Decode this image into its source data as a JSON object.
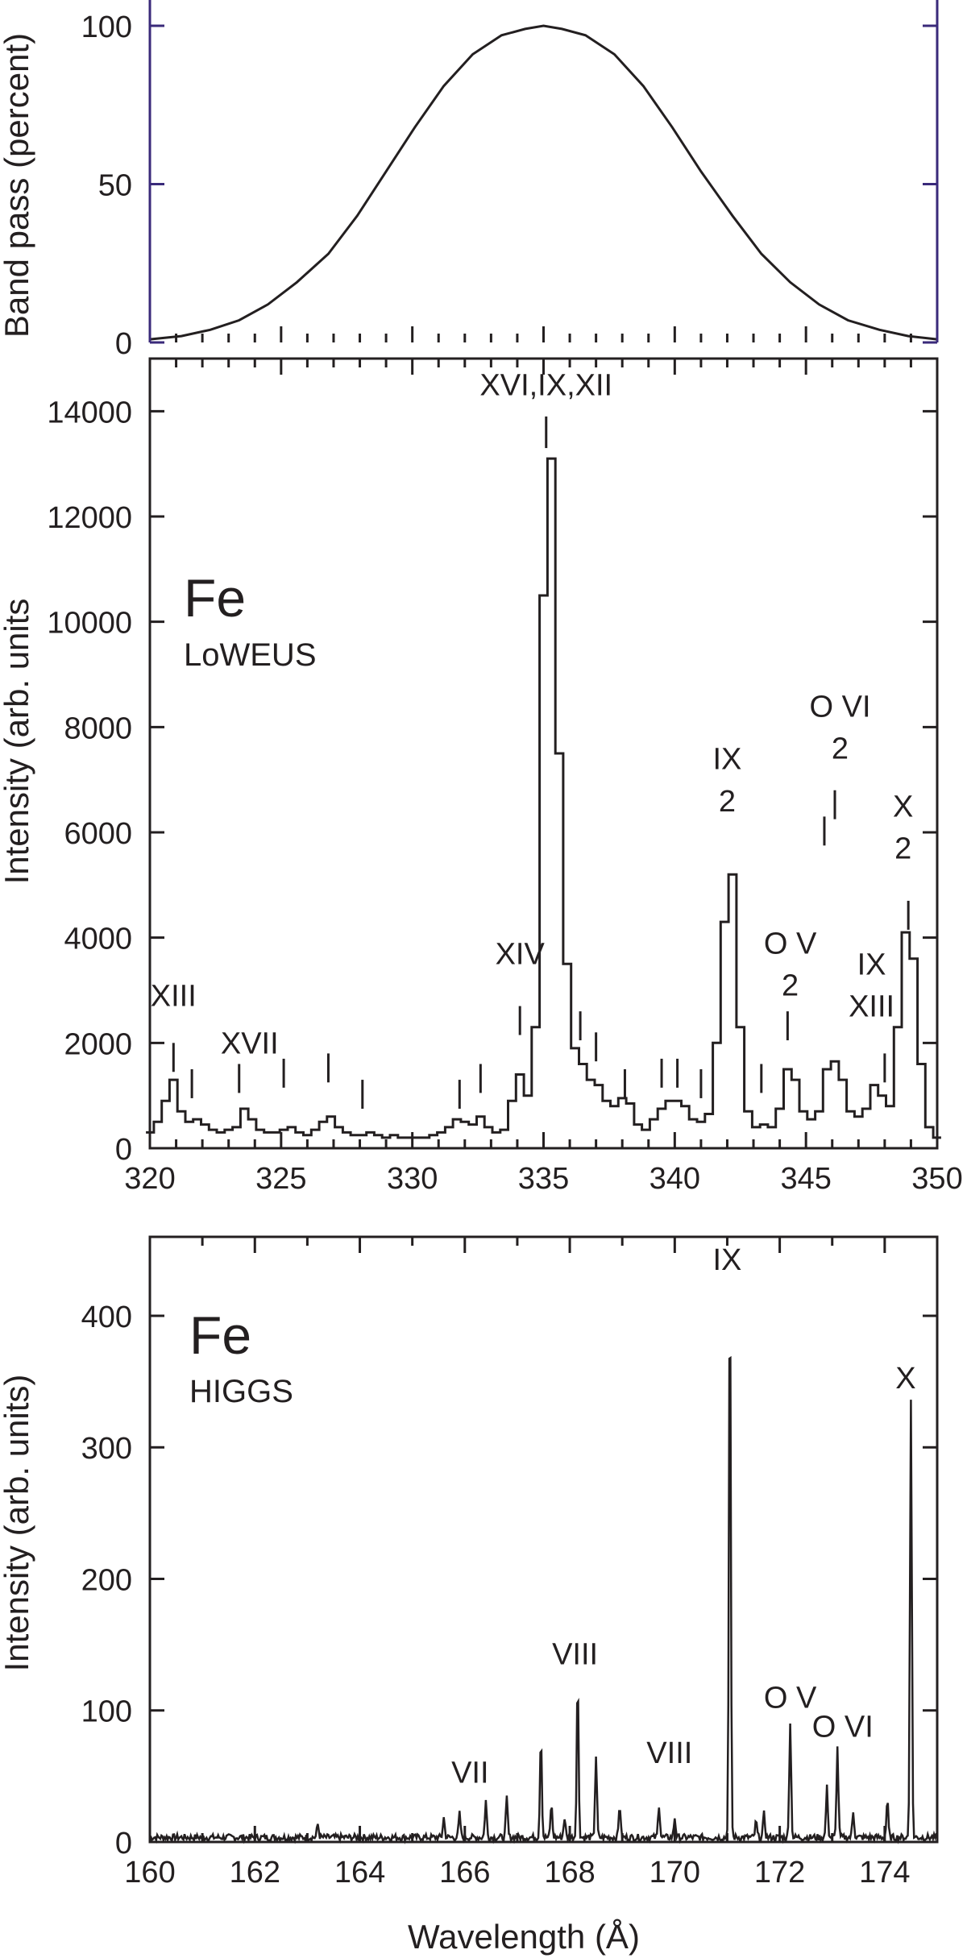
{
  "chart_data": [
    {
      "type": "line",
      "panel": "top",
      "ylabel": "Band pass (percent)",
      "xlabel": "",
      "ylim": [
        0,
        100
      ],
      "yticks": [
        0,
        50,
        100
      ],
      "frame_color": "#3a2a7a",
      "series": [
        {
          "x": [
            320,
            321.2,
            322.3,
            323.4,
            324.5,
            325.6,
            326.8,
            327.9,
            329.0,
            330.1,
            331.2,
            332.3,
            333.4,
            334.3,
            335.0,
            335.7,
            336.6,
            337.7,
            338.8,
            339.9,
            341.0,
            342.2,
            343.3,
            344.4,
            345.5,
            346.6,
            347.8,
            348.9,
            350
          ],
          "y": [
            1,
            2,
            4,
            7,
            12,
            19,
            28,
            40,
            54,
            68,
            81,
            91,
            97,
            99,
            100,
            99,
            97,
            91,
            81,
            68,
            54,
            40,
            28,
            19,
            12,
            7,
            4,
            2,
            1
          ]
        }
      ]
    },
    {
      "type": "line",
      "panel": "middle",
      "instrument_title": "Fe",
      "instrument_subtitle": "LoWEUS",
      "ylabel": "Intensity (arb. units",
      "xlabel": "",
      "xlim": [
        320,
        350
      ],
      "ylim": [
        0,
        15000
      ],
      "xticks": [
        320,
        325,
        330,
        335,
        340,
        345,
        350
      ],
      "yticks": [
        0,
        2000,
        4000,
        6000,
        8000,
        10000,
        12000,
        14000
      ],
      "series": [
        {
          "x": [
            320.0,
            320.3,
            320.6,
            320.9,
            321.2,
            321.5,
            321.8,
            322.1,
            322.4,
            322.7,
            323.0,
            323.3,
            323.6,
            323.9,
            324.2,
            324.5,
            324.8,
            325.1,
            325.4,
            325.7,
            326.0,
            326.3,
            326.6,
            326.9,
            327.2,
            327.5,
            327.8,
            328.1,
            328.4,
            328.7,
            329.0,
            329.3,
            329.6,
            329.9,
            330.2,
            330.5,
            330.8,
            331.1,
            331.4,
            331.7,
            332.0,
            332.3,
            332.6,
            332.9,
            333.2,
            333.5,
            333.8,
            334.1,
            334.4,
            334.7,
            335.0,
            335.3,
            335.6,
            335.9,
            336.2,
            336.5,
            336.8,
            337.1,
            337.4,
            337.7,
            338.0,
            338.3,
            338.6,
            338.9,
            339.2,
            339.5,
            339.8,
            340.1,
            340.4,
            340.7,
            341.0,
            341.3,
            341.6,
            341.9,
            342.2,
            342.5,
            342.8,
            343.1,
            343.4,
            343.7,
            344.0,
            344.3,
            344.6,
            344.9,
            345.2,
            345.5,
            345.8,
            346.1,
            346.4,
            346.7,
            347.0,
            347.3,
            347.6,
            347.9,
            348.2,
            348.5,
            348.8,
            349.1,
            349.4,
            349.7,
            350.0
          ],
          "y": [
            300,
            500,
            900,
            1300,
            700,
            500,
            550,
            450,
            350,
            300,
            350,
            400,
            750,
            550,
            350,
            300,
            300,
            350,
            400,
            300,
            250,
            350,
            500,
            600,
            400,
            300,
            250,
            250,
            300,
            250,
            200,
            250,
            200,
            200,
            200,
            200,
            250,
            300,
            400,
            550,
            500,
            450,
            600,
            400,
            300,
            350,
            900,
            1400,
            1000,
            2300,
            10500,
            13100,
            7500,
            3500,
            1900,
            1600,
            1300,
            1200,
            900,
            800,
            950,
            850,
            450,
            350,
            550,
            750,
            900,
            900,
            800,
            550,
            500,
            650,
            2000,
            4300,
            5200,
            2300,
            700,
            400,
            450,
            400,
            750,
            1500,
            1300,
            700,
            550,
            700,
            1500,
            1650,
            1300,
            700,
            600,
            750,
            1200,
            1000,
            800,
            2300,
            4100,
            3600,
            1600,
            400,
            200
          ]
        }
      ],
      "annotations": [
        {
          "text": "XVI,IX,XII",
          "x": 335.1,
          "y": 14300
        },
        {
          "text": "XIII",
          "x": 320.9,
          "y": 2700
        },
        {
          "text": "XVII",
          "x": 323.8,
          "y": 1800
        },
        {
          "text": "XIV",
          "x": 334.1,
          "y": 3500
        },
        {
          "text": "IX",
          "x": 342.0,
          "y": 7200
        },
        {
          "text": "2",
          "x": 342.0,
          "y": 6400
        },
        {
          "text": "O V",
          "x": 344.4,
          "y": 3700
        },
        {
          "text": "2",
          "x": 344.4,
          "y": 2900
        },
        {
          "text": "O VI",
          "x": 346.3,
          "y": 8200
        },
        {
          "text": "2",
          "x": 346.3,
          "y": 7400
        },
        {
          "text": "IX",
          "x": 347.5,
          "y": 3300
        },
        {
          "text": "XIII",
          "x": 347.5,
          "y": 2500
        },
        {
          "text": "X",
          "x": 348.7,
          "y": 6300
        },
        {
          "text": "2",
          "x": 348.7,
          "y": 5500
        }
      ]
    },
    {
      "type": "line",
      "panel": "bottom",
      "instrument_title": "Fe",
      "instrument_subtitle": "HIGGS",
      "ylabel": "Intensity (arb. units)",
      "xlabel": "Wavelength (Å)",
      "xlim": [
        160,
        175
      ],
      "ylim": [
        0,
        460
      ],
      "xticks": [
        160,
        162,
        164,
        166,
        168,
        170,
        172,
        174
      ],
      "yticks": [
        0,
        100,
        200,
        300,
        400
      ],
      "series": [
        {
          "peaks": [
            {
              "x": 163.2,
              "y": 10
            },
            {
              "x": 165.6,
              "y": 15
            },
            {
              "x": 165.9,
              "y": 18
            },
            {
              "x": 166.4,
              "y": 28
            },
            {
              "x": 166.8,
              "y": 30
            },
            {
              "x": 167.45,
              "y": 78
            },
            {
              "x": 167.65,
              "y": 25
            },
            {
              "x": 167.9,
              "y": 15
            },
            {
              "x": 168.15,
              "y": 120
            },
            {
              "x": 168.5,
              "y": 62
            },
            {
              "x": 168.95,
              "y": 25
            },
            {
              "x": 169.7,
              "y": 25
            },
            {
              "x": 170.0,
              "y": 15
            },
            {
              "x": 171.05,
              "y": 425
            },
            {
              "x": 171.55,
              "y": 12
            },
            {
              "x": 171.7,
              "y": 18
            },
            {
              "x": 172.2,
              "y": 88
            },
            {
              "x": 172.9,
              "y": 38
            },
            {
              "x": 173.1,
              "y": 68
            },
            {
              "x": 173.4,
              "y": 20
            },
            {
              "x": 174.05,
              "y": 28
            },
            {
              "x": 174.5,
              "y": 335
            }
          ],
          "baseline": 3
        }
      ],
      "annotations": [
        {
          "text": "IX",
          "x": 171.0,
          "y": 435
        },
        {
          "text": "X",
          "x": 174.4,
          "y": 345
        },
        {
          "text": "VIII",
          "x": 168.1,
          "y": 135
        },
        {
          "text": "VII",
          "x": 166.1,
          "y": 45
        },
        {
          "text": "VIII",
          "x": 169.9,
          "y": 60
        },
        {
          "text": "O V",
          "x": 172.2,
          "y": 102
        },
        {
          "text": "O VI",
          "x": 173.2,
          "y": 80
        }
      ]
    }
  ]
}
